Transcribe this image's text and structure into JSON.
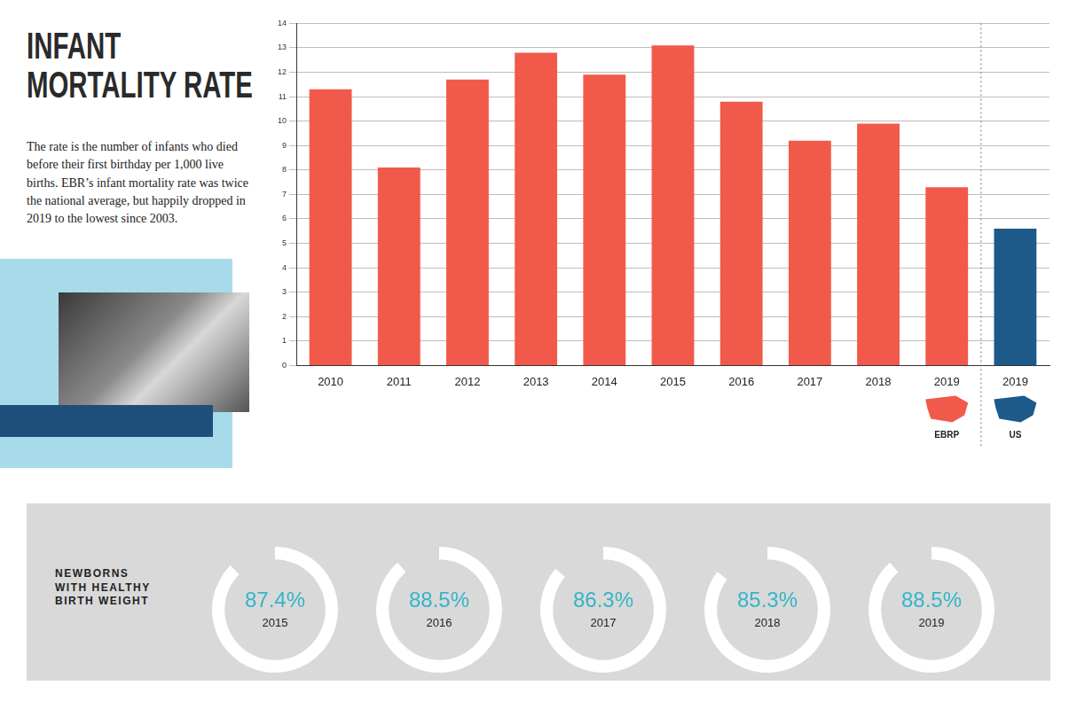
{
  "chart_data": [
    {
      "type": "bar",
      "title": "INFANT MORTALITY RATE",
      "subtitle": "The rate is the number of infants who died before their first birthday per 1,000 live births. EBR’s infant mortality rate was twice the national average, but happily dropped in 2019 to the lowest since 2003.",
      "categories": [
        "2010",
        "2011",
        "2012",
        "2013",
        "2014",
        "2015",
        "2016",
        "2017",
        "2018",
        "2019",
        "2019"
      ],
      "series": [
        {
          "name": "EBRP",
          "color": "#f15a4a",
          "values": [
            11.3,
            8.1,
            11.7,
            12.8,
            11.9,
            13.1,
            10.8,
            9.2,
            9.9,
            7.3,
            null
          ]
        },
        {
          "name": "US",
          "color": "#1d5a8a",
          "values": [
            null,
            null,
            null,
            null,
            null,
            null,
            null,
            null,
            null,
            null,
            5.6
          ]
        }
      ],
      "ylim": [
        0,
        14
      ],
      "yticks": [
        0,
        1,
        2,
        3,
        4,
        5,
        6,
        7,
        8,
        9,
        10,
        11,
        12,
        13,
        14
      ],
      "grid": true,
      "legend": "bottom"
    },
    {
      "type": "doughnut",
      "title": "NEWBORNS WITH HEALTHY BIRTH WEIGHT",
      "categories": [
        "2015",
        "2016",
        "2017",
        "2018",
        "2019"
      ],
      "values": [
        87.4,
        88.5,
        86.3,
        85.3,
        88.5
      ],
      "value_labels": [
        "87.4%",
        "88.5%",
        "86.3%",
        "85.3%",
        "88.5%"
      ],
      "color": "#ffffff"
    }
  ]
}
